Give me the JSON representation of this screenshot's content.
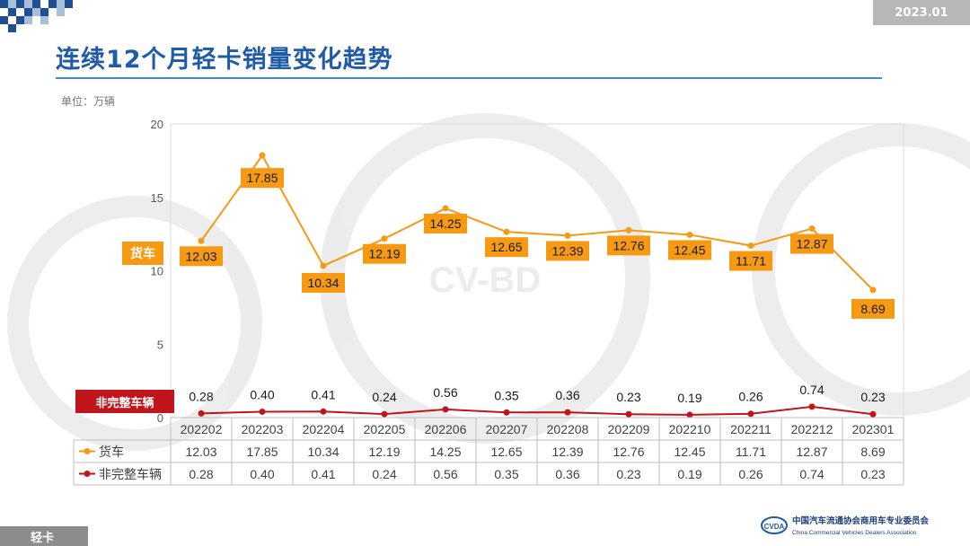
{
  "header": {
    "date_badge": "2023.01",
    "title": "连续12个月轻卡销量变化趋势"
  },
  "unit_label": "单位：万辆",
  "watermark_text": "CV-BD",
  "footer": {
    "tag": "轻卡",
    "org_name_cn": "中国汽车流通协会商用车专业委员会",
    "org_name_en": "China Commercial Vehicles Dealers Association",
    "org_short": "CVDA"
  },
  "colors": {
    "accent_blue": "#1f5ba8",
    "series_truck": "#f59a12",
    "series_incomplete": "#c0151b"
  },
  "chart_data": {
    "type": "line",
    "categories": [
      "202202",
      "202203",
      "202204",
      "202205",
      "202206",
      "202207",
      "202208",
      "202209",
      "202210",
      "202211",
      "202212",
      "202301"
    ],
    "ylim": [
      0,
      20
    ],
    "yticks": [
      0,
      5,
      10,
      15,
      20
    ],
    "series": [
      {
        "name": "货车",
        "color": "#f59a12",
        "values": [
          12.03,
          17.85,
          10.34,
          12.19,
          14.25,
          12.65,
          12.39,
          12.76,
          12.45,
          11.71,
          12.87,
          8.69
        ]
      },
      {
        "name": "非完整车辆",
        "color": "#c0151b",
        "values": [
          0.28,
          0.4,
          0.41,
          0.24,
          0.56,
          0.35,
          0.36,
          0.23,
          0.19,
          0.26,
          0.74,
          0.23
        ]
      }
    ],
    "series_tags": [
      "货车",
      "非完整车辆"
    ],
    "table": true
  }
}
